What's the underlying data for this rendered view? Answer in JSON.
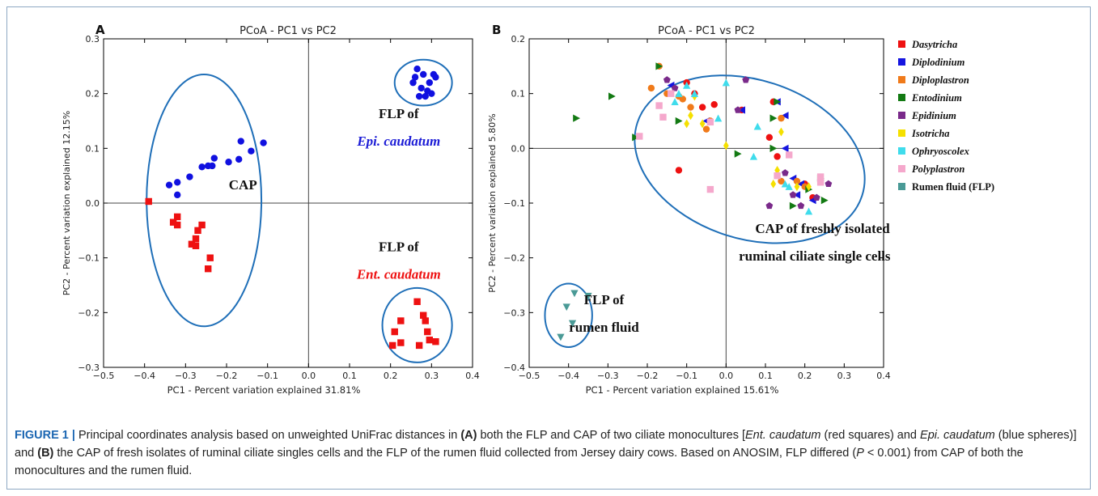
{
  "chart_data": [
    {
      "panel": "A",
      "type": "scatter",
      "title": "PCoA - PC1 vs PC2",
      "xlabel": "PC1 - Percent variation explained 31.81%",
      "ylabel": "PC2 - Percent variation explained 12.15%",
      "xlim": [
        -0.5,
        0.4
      ],
      "ylim": [
        -0.3,
        0.3
      ],
      "xticks": [
        "−0.5",
        "−0.4",
        "−0.3",
        "−0.2",
        "−0.1",
        "0.0",
        "0.1",
        "0.2",
        "0.3",
        "0.4"
      ],
      "yticks": [
        "−0.3",
        "−0.2",
        "−0.1",
        "0.0",
        "0.1",
        "0.2",
        "0.3"
      ],
      "grid": false,
      "series": [
        {
          "color": "#1010e0",
          "marker": "circle",
          "points": [
            [
              0.26,
              0.23
            ],
            [
              0.265,
              0.245
            ],
            [
              0.28,
              0.235
            ],
            [
              0.295,
              0.22
            ],
            [
              0.305,
              0.235
            ],
            [
              0.255,
              0.22
            ],
            [
              0.29,
              0.205
            ],
            [
              0.275,
              0.21
            ],
            [
              0.3,
              0.2
            ],
            [
              0.27,
              0.195
            ],
            [
              0.285,
              0.195
            ],
            [
              0.31,
              0.23
            ],
            [
              -0.34,
              0.033
            ],
            [
              -0.32,
              0.038
            ],
            [
              -0.29,
              0.048
            ],
            [
              -0.26,
              0.066
            ],
            [
              -0.245,
              0.068
            ],
            [
              -0.235,
              0.068
            ],
            [
              -0.23,
              0.082
            ],
            [
              -0.195,
              0.075
            ],
            [
              -0.17,
              0.08
            ],
            [
              -0.165,
              0.113
            ],
            [
              -0.14,
              0.095
            ],
            [
              -0.11,
              0.11
            ],
            [
              -0.32,
              0.015
            ]
          ]
        },
        {
          "color": "#ee1111",
          "marker": "square",
          "points": [
            [
              0.265,
              -0.18
            ],
            [
              0.28,
              -0.205
            ],
            [
              0.285,
              -0.215
            ],
            [
              0.29,
              -0.235
            ],
            [
              0.295,
              -0.25
            ],
            [
              0.31,
              -0.253
            ],
            [
              0.21,
              -0.235
            ],
            [
              0.225,
              -0.215
            ],
            [
              0.205,
              -0.26
            ],
            [
              0.225,
              -0.255
            ],
            [
              0.27,
              -0.26
            ],
            [
              -0.39,
              0.003
            ],
            [
              -0.32,
              -0.025
            ],
            [
              -0.33,
              -0.035
            ],
            [
              -0.32,
              -0.04
            ],
            [
              -0.26,
              -0.04
            ],
            [
              -0.27,
              -0.05
            ],
            [
              -0.275,
              -0.065
            ],
            [
              -0.285,
              -0.075
            ],
            [
              -0.275,
              -0.078
            ],
            [
              -0.24,
              -0.1
            ],
            [
              -0.245,
              -0.12
            ]
          ]
        }
      ],
      "ellipses": [
        {
          "cx": 0.28,
          "cy": 0.22,
          "rx": 0.07,
          "ry": 0.042
        },
        {
          "cx": -0.255,
          "cy": 0.005,
          "rx": 0.14,
          "ry": 0.23
        },
        {
          "cx": 0.265,
          "cy": -0.223,
          "rx": 0.085,
          "ry": 0.068
        }
      ],
      "annotations": [
        {
          "text": "FLP of",
          "x": 0.22,
          "y": 0.155,
          "color": "#111111"
        },
        {
          "text": "Epi. caudatum",
          "x": 0.22,
          "y": 0.105,
          "color": "#1b1bd6",
          "italic": true
        },
        {
          "text": "CAP",
          "x": -0.16,
          "y": 0.025,
          "color": "#111111"
        },
        {
          "text": "FLP of",
          "x": 0.22,
          "y": -0.088,
          "color": "#111111"
        },
        {
          "text": "Ent. caudatum",
          "x": 0.22,
          "y": -0.138,
          "color": "#ee1111",
          "italic": true
        }
      ]
    },
    {
      "panel": "B",
      "type": "scatter",
      "title": "PCoA - PC1 vs PC2",
      "xlabel": "PC1 - Percent variation explained 15.61%",
      "ylabel": "PC2 - Percent variation explained 5.80%",
      "xlim": [
        -0.5,
        0.4
      ],
      "ylim": [
        -0.4,
        0.2
      ],
      "xticks": [
        "−0.5",
        "−0.4",
        "−0.3",
        "−0.2",
        "−0.1",
        "0.0",
        "0.1",
        "0.2",
        "0.3",
        "0.4"
      ],
      "yticks": [
        "−0.4",
        "−0.3",
        "−0.2",
        "−0.1",
        "0.0",
        "0.1",
        "0.2"
      ],
      "grid": false,
      "legend_position": "right",
      "series": [
        {
          "name": "Dasytricha",
          "color": "#ee1111",
          "marker": "circle",
          "points": [
            [
              -0.1,
              0.12
            ],
            [
              -0.08,
              0.1
            ],
            [
              -0.06,
              0.075
            ],
            [
              -0.03,
              0.08
            ],
            [
              0.04,
              0.07
            ],
            [
              0.12,
              0.085
            ],
            [
              0.11,
              0.02
            ],
            [
              0.13,
              -0.015
            ],
            [
              -0.12,
              -0.04
            ],
            [
              0.2,
              -0.065
            ],
            [
              0.22,
              -0.09
            ]
          ]
        },
        {
          "name": "Diplodinium",
          "color": "#1515e0",
          "marker": "tri-left",
          "points": [
            [
              -0.14,
              0.115
            ],
            [
              -0.05,
              0.05
            ],
            [
              0.04,
              0.07
            ],
            [
              0.15,
              0.06
            ],
            [
              0.13,
              0.085
            ],
            [
              0.15,
              0
            ],
            [
              0.17,
              -0.055
            ],
            [
              0.18,
              -0.085
            ],
            [
              0.22,
              -0.095
            ],
            [
              0.19,
              -0.065
            ]
          ]
        },
        {
          "name": "Diploplastron",
          "color": "#f07a1a",
          "marker": "circle",
          "points": [
            [
              -0.17,
              0.15
            ],
            [
              -0.19,
              0.11
            ],
            [
              -0.15,
              0.1
            ],
            [
              -0.12,
              0.095
            ],
            [
              -0.11,
              0.09
            ],
            [
              -0.09,
              0.075
            ],
            [
              -0.05,
              0.035
            ],
            [
              -0.04,
              0.05
            ],
            [
              0.14,
              0.055
            ],
            [
              0.18,
              -0.06
            ],
            [
              0.14,
              -0.06
            ],
            [
              0.2,
              -0.07
            ]
          ]
        },
        {
          "name": "Entodinium",
          "color": "#137a13",
          "marker": "tri-right",
          "points": [
            [
              -0.38,
              0.055
            ],
            [
              -0.29,
              0.095
            ],
            [
              -0.17,
              0.15
            ],
            [
              -0.23,
              0.02
            ],
            [
              -0.12,
              0.05
            ],
            [
              0.13,
              0.085
            ],
            [
              0.12,
              0.055
            ],
            [
              0.03,
              -0.01
            ],
            [
              0.12,
              0
            ],
            [
              0.24,
              -0.055
            ],
            [
              0.21,
              -0.075
            ],
            [
              0.25,
              -0.095
            ],
            [
              0.17,
              -0.105
            ]
          ]
        },
        {
          "name": "Epidinium",
          "color": "#7a2a8a",
          "marker": "pentagon",
          "points": [
            [
              -0.15,
              0.125
            ],
            [
              -0.13,
              0.11
            ],
            [
              0.05,
              0.125
            ],
            [
              0.03,
              0.07
            ],
            [
              0.15,
              -0.045
            ],
            [
              0.17,
              -0.085
            ],
            [
              0.23,
              -0.09
            ],
            [
              0.24,
              -0.06
            ],
            [
              0.19,
              -0.105
            ],
            [
              0.11,
              -0.105
            ],
            [
              0.26,
              -0.065
            ]
          ]
        },
        {
          "name": "Isotricha",
          "color": "#f5e000",
          "marker": "diamond",
          "points": [
            [
              -0.1,
              0.045
            ],
            [
              -0.06,
              0.045
            ],
            [
              0.0,
              0.005
            ],
            [
              0.14,
              0.03
            ],
            [
              0.13,
              -0.04
            ],
            [
              0.12,
              -0.065
            ],
            [
              0.18,
              -0.07
            ],
            [
              0.21,
              -0.07
            ],
            [
              -0.08,
              0.095
            ],
            [
              -0.09,
              0.06
            ]
          ]
        },
        {
          "name": "Ophryoscolex",
          "color": "#3fdcec",
          "marker": "triangle",
          "points": [
            [
              -0.13,
              0.085
            ],
            [
              -0.12,
              0.1
            ],
            [
              -0.1,
              0.115
            ],
            [
              -0.08,
              0.1
            ],
            [
              -0.02,
              0.055
            ],
            [
              0.0,
              0.12
            ],
            [
              0.08,
              0.04
            ],
            [
              0.07,
              -0.015
            ],
            [
              0.16,
              -0.07
            ],
            [
              0.21,
              -0.115
            ],
            [
              0.15,
              -0.065
            ]
          ]
        },
        {
          "name": "Polyplastron",
          "color": "#f5a8cc",
          "marker": "square",
          "points": [
            [
              -0.22,
              0.022
            ],
            [
              -0.17,
              0.078
            ],
            [
              -0.16,
              0.057
            ],
            [
              -0.14,
              0.1
            ],
            [
              -0.04,
              0.048
            ],
            [
              -0.04,
              -0.075
            ],
            [
              0.13,
              -0.05
            ],
            [
              0.16,
              -0.012
            ],
            [
              0.24,
              -0.052
            ],
            [
              0.24,
              -0.062
            ]
          ]
        },
        {
          "name": "Rumen fluid (FLP)",
          "color": "#4a9a96",
          "marker": "tri-down",
          "points": [
            [
              -0.385,
              -0.265
            ],
            [
              -0.35,
              -0.27
            ],
            [
              -0.405,
              -0.29
            ],
            [
              -0.39,
              -0.32
            ],
            [
              -0.42,
              -0.345
            ]
          ]
        }
      ],
      "ellipses": [
        {
          "cx": 0.06,
          "cy": -0.02,
          "rx": 0.3,
          "ry": 0.145,
          "rotate": 18
        },
        {
          "cx": -0.4,
          "cy": -0.305,
          "rx": 0.06,
          "ry": 0.058
        }
      ],
      "annotations": [
        {
          "text": "CAP of freshly isolated",
          "x": 0.245,
          "y": -0.155,
          "color": "#111111"
        },
        {
          "text": "ruminal  ciliate single cells",
          "x": 0.225,
          "y": -0.205,
          "color": "#111111"
        },
        {
          "text": "FLP of",
          "x": -0.31,
          "y": -0.285,
          "color": "#111111"
        },
        {
          "text": "rumen  fluid",
          "x": -0.31,
          "y": -0.335,
          "color": "#111111"
        }
      ]
    }
  ],
  "panel_letters": [
    "A",
    "B"
  ],
  "caption": {
    "label": "FIGURE 1 |",
    "text1": " Principal coordinates analysis based on unweighted UniFrac distances in ",
    "b_a": "(A)",
    "text2": " both the FLP and CAP of two ciliate monocultures [",
    "i_ent": "Ent. caudatum",
    "text3": " (red squares) and ",
    "i_epi": "Epi. caudatum",
    "text4": " (blue spheres)] and ",
    "b_b": "(B)",
    "text5": " the CAP of fresh isolates of ruminal ciliate singles cells and the FLP of the rumen fluid collected from Jersey dairy cows. Based on ANOSIM, FLP differed (",
    "i_p": "P",
    "text6": " < 0.001) from CAP of both the monocultures and the rumen fluid."
  }
}
